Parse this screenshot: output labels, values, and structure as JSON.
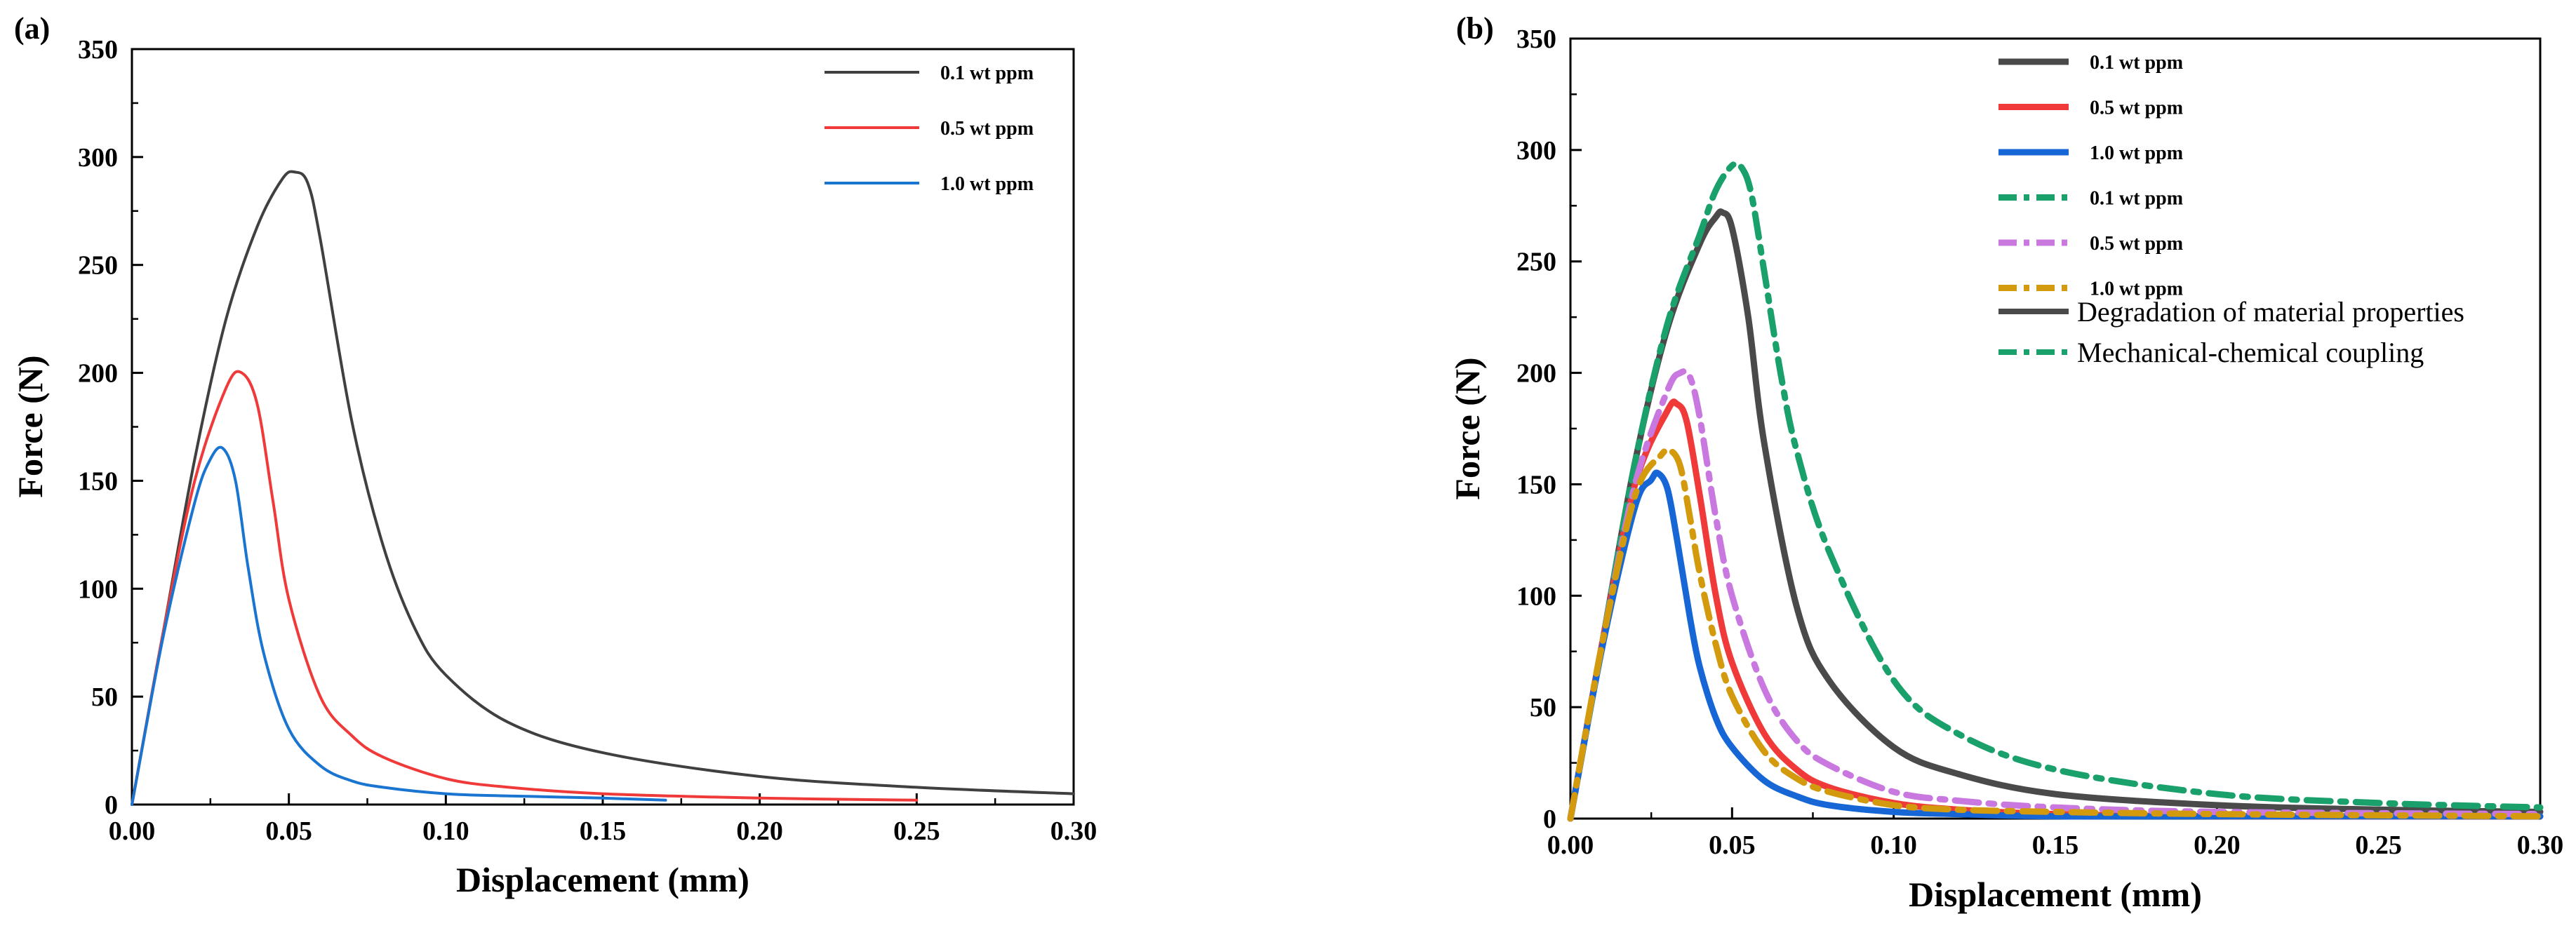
{
  "chart_data": [
    {
      "type": "line",
      "panel_label": "(a)",
      "xlabel": "Displacement (mm)",
      "ylabel": "Force (N)",
      "xlim": [
        0,
        0.3
      ],
      "ylim": [
        0,
        350
      ],
      "x_ticks": [
        "0.00",
        "0.05",
        "0.10",
        "0.15",
        "0.20",
        "0.25",
        "0.30"
      ],
      "y_ticks": [
        "0",
        "50",
        "100",
        "150",
        "200",
        "250",
        "300",
        "350"
      ],
      "legend_position": "top-right",
      "series": [
        {
          "name": "0.1 wt ppm",
          "color": "#404040",
          "dash": "solid",
          "x": [
            0,
            0.01,
            0.02,
            0.03,
            0.04,
            0.048,
            0.052,
            0.056,
            0.06,
            0.07,
            0.08,
            0.09,
            0.1,
            0.12,
            0.15,
            0.2,
            0.25,
            0.3
          ],
          "y": [
            0,
            80,
            160,
            225,
            268,
            290,
            293,
            288,
            262,
            178,
            120,
            82,
            60,
            38,
            24,
            13,
            8,
            5
          ]
        },
        {
          "name": "0.5 wt ppm",
          "color": "#f03a3a",
          "dash": "solid",
          "x": [
            0,
            0.01,
            0.02,
            0.03,
            0.035,
            0.04,
            0.045,
            0.05,
            0.06,
            0.07,
            0.08,
            0.1,
            0.12,
            0.15,
            0.2,
            0.25
          ],
          "y": [
            0,
            80,
            150,
            193,
            200,
            185,
            140,
            95,
            50,
            32,
            22,
            12,
            8,
            5,
            3,
            2
          ]
        },
        {
          "name": "1.0 wt ppm",
          "color": "#1a75d1",
          "dash": "solid",
          "x": [
            0,
            0.01,
            0.02,
            0.025,
            0.029,
            0.033,
            0.037,
            0.042,
            0.05,
            0.06,
            0.07,
            0.08,
            0.1,
            0.12,
            0.15,
            0.17
          ],
          "y": [
            0,
            78,
            140,
            160,
            165,
            150,
            110,
            70,
            35,
            18,
            11,
            8,
            5,
            4,
            3,
            2
          ]
        }
      ]
    },
    {
      "type": "line",
      "panel_label": "(b)",
      "xlabel": "Displacement (mm)",
      "ylabel": "Force (N)",
      "xlim": [
        0,
        0.3
      ],
      "ylim": [
        0,
        350
      ],
      "x_ticks": [
        "0.00",
        "0.05",
        "0.10",
        "0.15",
        "0.20",
        "0.25",
        "0.30"
      ],
      "y_ticks": [
        "0",
        "50",
        "100",
        "150",
        "200",
        "250",
        "300",
        "350"
      ],
      "legend_position": "top-right",
      "series": [
        {
          "name": "0.1 wt ppm",
          "color": "#4a4a4a",
          "dash": "solid",
          "x": [
            0,
            0.01,
            0.02,
            0.03,
            0.04,
            0.045,
            0.047,
            0.05,
            0.055,
            0.06,
            0.07,
            0.08,
            0.1,
            0.12,
            0.15,
            0.2,
            0.25,
            0.3
          ],
          "y": [
            0,
            80,
            160,
            220,
            258,
            270,
            272,
            265,
            225,
            168,
            95,
            62,
            32,
            20,
            11,
            6,
            4,
            3
          ]
        },
        {
          "name": "0.5 wt ppm",
          "color": "#f03a3a",
          "dash": "solid",
          "x": [
            0,
            0.01,
            0.02,
            0.03,
            0.033,
            0.036,
            0.04,
            0.045,
            0.05,
            0.06,
            0.07,
            0.08,
            0.1,
            0.12,
            0.15,
            0.2,
            0.3
          ],
          "y": [
            0,
            80,
            150,
            183,
            186,
            178,
            145,
            100,
            70,
            38,
            22,
            14,
            7,
            4,
            2,
            1,
            1
          ]
        },
        {
          "name": "1.0 wt ppm",
          "color": "#1666d6",
          "dash": "solid",
          "x": [
            0,
            0.01,
            0.02,
            0.025,
            0.027,
            0.03,
            0.033,
            0.037,
            0.04,
            0.045,
            0.05,
            0.06,
            0.07,
            0.08,
            0.1,
            0.12,
            0.15,
            0.2,
            0.3
          ],
          "y": [
            0,
            78,
            140,
            152,
            155,
            148,
            125,
            90,
            68,
            45,
            32,
            17,
            10,
            6,
            3,
            2,
            1,
            1,
            1
          ]
        },
        {
          "name": "0.1 wt ppm",
          "color": "#1aa06a",
          "dash": "dashdot",
          "x": [
            0,
            0.01,
            0.02,
            0.03,
            0.04,
            0.045,
            0.05,
            0.053,
            0.056,
            0.06,
            0.065,
            0.07,
            0.08,
            0.1,
            0.12,
            0.15,
            0.2,
            0.25,
            0.3
          ],
          "y": [
            0,
            80,
            160,
            222,
            262,
            282,
            293,
            292,
            280,
            245,
            200,
            165,
            120,
            62,
            38,
            22,
            11,
            7,
            5
          ]
        },
        {
          "name": "0.5 wt ppm",
          "color": "#c978e0",
          "dash": "dashdot",
          "x": [
            0,
            0.01,
            0.02,
            0.03,
            0.034,
            0.037,
            0.04,
            0.045,
            0.05,
            0.06,
            0.07,
            0.08,
            0.1,
            0.12,
            0.15,
            0.2,
            0.3
          ],
          "y": [
            0,
            80,
            150,
            192,
            200,
            198,
            180,
            135,
            100,
            58,
            35,
            24,
            12,
            8,
            5,
            3,
            2
          ]
        },
        {
          "name": "1.0 wt ppm",
          "color": "#d49a0e",
          "dash": "dashdot",
          "x": [
            0,
            0.01,
            0.02,
            0.028,
            0.031,
            0.034,
            0.037,
            0.04,
            0.045,
            0.05,
            0.06,
            0.07,
            0.08,
            0.1,
            0.12,
            0.15,
            0.2,
            0.3
          ],
          "y": [
            0,
            80,
            145,
            163,
            165,
            158,
            135,
            110,
            78,
            55,
            30,
            18,
            12,
            6,
            4,
            3,
            2,
            1
          ]
        }
      ],
      "extra_legend": [
        {
          "name": "Degradation of material properties",
          "color": "#4a4a4a",
          "dash": "solid"
        },
        {
          "name": "Mechanical-chemical coupling",
          "color": "#1aa06a",
          "dash": "dashdot"
        }
      ]
    }
  ]
}
